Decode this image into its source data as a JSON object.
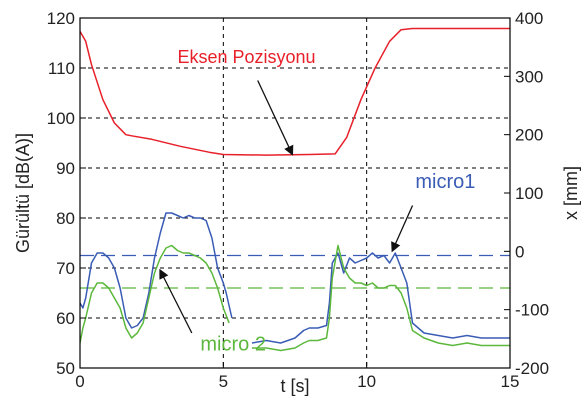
{
  "chart_data": {
    "type": "line",
    "title": "",
    "xlabel": "t [s]",
    "ylabel": "Gürültü [dB(A)]",
    "y2label": "x [mm]",
    "xlim": [
      0,
      15
    ],
    "ylim": [
      50,
      120
    ],
    "y2lim": [
      -200,
      400
    ],
    "xticks": [
      "0",
      "5",
      "10",
      "15"
    ],
    "yticks": [
      "50",
      "60",
      "70",
      "80",
      "90",
      "100",
      "110",
      "120"
    ],
    "y2ticks": [
      "-200",
      "-100",
      "0",
      "100",
      "200",
      "300",
      "400"
    ],
    "grid": true,
    "series": [
      {
        "name": "Eksen Pozisyonu",
        "axis": "right",
        "color": "#e8202a",
        "x": [
          0,
          0.2,
          0.4,
          0.8,
          1.2,
          1.6,
          1.8,
          2.5,
          3.5,
          4.5,
          5.0,
          6.5,
          8.0,
          8.9,
          9.3,
          9.8,
          10.3,
          10.8,
          11.2,
          11.6,
          12.5,
          15
        ],
        "y": [
          377,
          360,
          320,
          260,
          220,
          200,
          198,
          192,
          180,
          170,
          166,
          165,
          166,
          167,
          195,
          260,
          315,
          360,
          380,
          382,
          382,
          382
        ]
      },
      {
        "name": "micro1",
        "axis": "left",
        "color": "#3a5cb5",
        "segments": [
          {
            "x": [
              0,
              0.1,
              0.2,
              0.4,
              0.6,
              0.8,
              1.0,
              1.2,
              1.4,
              1.6,
              1.8,
              2.0,
              2.2,
              2.4,
              2.6,
              2.8,
              3.0,
              3.2,
              3.4,
              3.6,
              3.8,
              4.0,
              4.2,
              4.4,
              4.6,
              4.8,
              5.0,
              5.1,
              5.3
            ],
            "y": [
              63,
              62,
              64,
              71,
              73,
              73,
              72,
              70,
              66,
              60,
              58,
              58.5,
              60,
              65,
              72,
              77,
              81,
              81,
              80.5,
              80,
              80.5,
              80,
              80,
              79.5,
              76,
              70,
              67,
              65,
              60
            ]
          },
          {
            "x": [
              6.0,
              6.5,
              7.0,
              7.5,
              7.8,
              8.0,
              8.3,
              8.6,
              8.7,
              8.8,
              9.0,
              9.2,
              9.4,
              9.6,
              9.8,
              10.0,
              10.2,
              10.4,
              10.6,
              10.8,
              11.0,
              11.2,
              11.4,
              11.6,
              12.0,
              12.5,
              13.0,
              13.5,
              14.0,
              14.5,
              15.0
            ],
            "y": [
              55,
              55.5,
              55,
              56,
              57.5,
              58,
              58,
              58.5,
              63,
              71,
              73,
              69,
              72,
              71,
              71.5,
              72,
              73,
              72,
              72.5,
              71,
              73,
              70,
              67,
              59,
              57,
              56.5,
              56,
              56.5,
              56,
              56,
              56
            ]
          }
        ]
      },
      {
        "name": "micro 2",
        "axis": "left",
        "color": "#5cb83c",
        "segments": [
          {
            "x": [
              0,
              0.1,
              0.2,
              0.4,
              0.6,
              0.8,
              1.0,
              1.2,
              1.4,
              1.6,
              1.8,
              2.0,
              2.2,
              2.4,
              2.6,
              2.8,
              3.0,
              3.2,
              3.4,
              3.6,
              3.8,
              4.0,
              4.2,
              4.4,
              4.6,
              4.8,
              5.0,
              5.2
            ],
            "y": [
              55,
              58,
              60,
              65,
              67,
              67,
              66,
              64,
              62,
              58,
              56,
              57,
              59,
              64,
              69,
              72,
              74,
              74.5,
              73.5,
              73,
              73,
              72.5,
              72,
              71,
              69,
              66,
              62,
              59
            ]
          },
          {
            "x": [
              6.0,
              6.5,
              7.0,
              7.5,
              7.8,
              8.0,
              8.3,
              8.6,
              8.7,
              8.8,
              9.0,
              9.2,
              9.4,
              9.6,
              9.8,
              10.0,
              10.2,
              10.4,
              10.6,
              10.8,
              11.0,
              11.2,
              11.4,
              11.6,
              12.0,
              12.5,
              13.0,
              13.5,
              14.0,
              14.5,
              15.0
            ],
            "y": [
              54,
              54,
              53.5,
              54,
              55,
              55.5,
              55.5,
              56,
              60,
              68,
              74.5,
              70,
              68,
              67,
              67,
              66.5,
              67,
              66,
              66,
              66.5,
              66.5,
              65,
              62,
              57.5,
              56,
              55,
              54.5,
              55,
              54.5,
              54.5,
              54.5
            ]
          }
        ]
      }
    ],
    "reference_lines": [
      {
        "axis": "left",
        "y": 72.5,
        "color": "#3a5cb5",
        "style": "dashed"
      },
      {
        "axis": "left",
        "y": 66,
        "color": "#5cb83c",
        "style": "dashed"
      }
    ],
    "annotations": [
      {
        "text": "Eksen Pozisyonu",
        "color": "#e8202a",
        "x": 3.4,
        "y": 111,
        "axis": "left",
        "arrow_to": {
          "x": 7.4,
          "y": 92.8
        }
      },
      {
        "text": "micro1",
        "color": "#3a5cb5",
        "x": 11.7,
        "y": 86,
        "axis": "left",
        "arrow_to": {
          "x": 10.9,
          "y": 73.5
        }
      },
      {
        "text": "micro 2",
        "color": "#5cb83c",
        "x": 4.2,
        "y": 53.5,
        "axis": "left",
        "arrow_to": {
          "x": 2.8,
          "y": 69.5
        }
      }
    ]
  }
}
